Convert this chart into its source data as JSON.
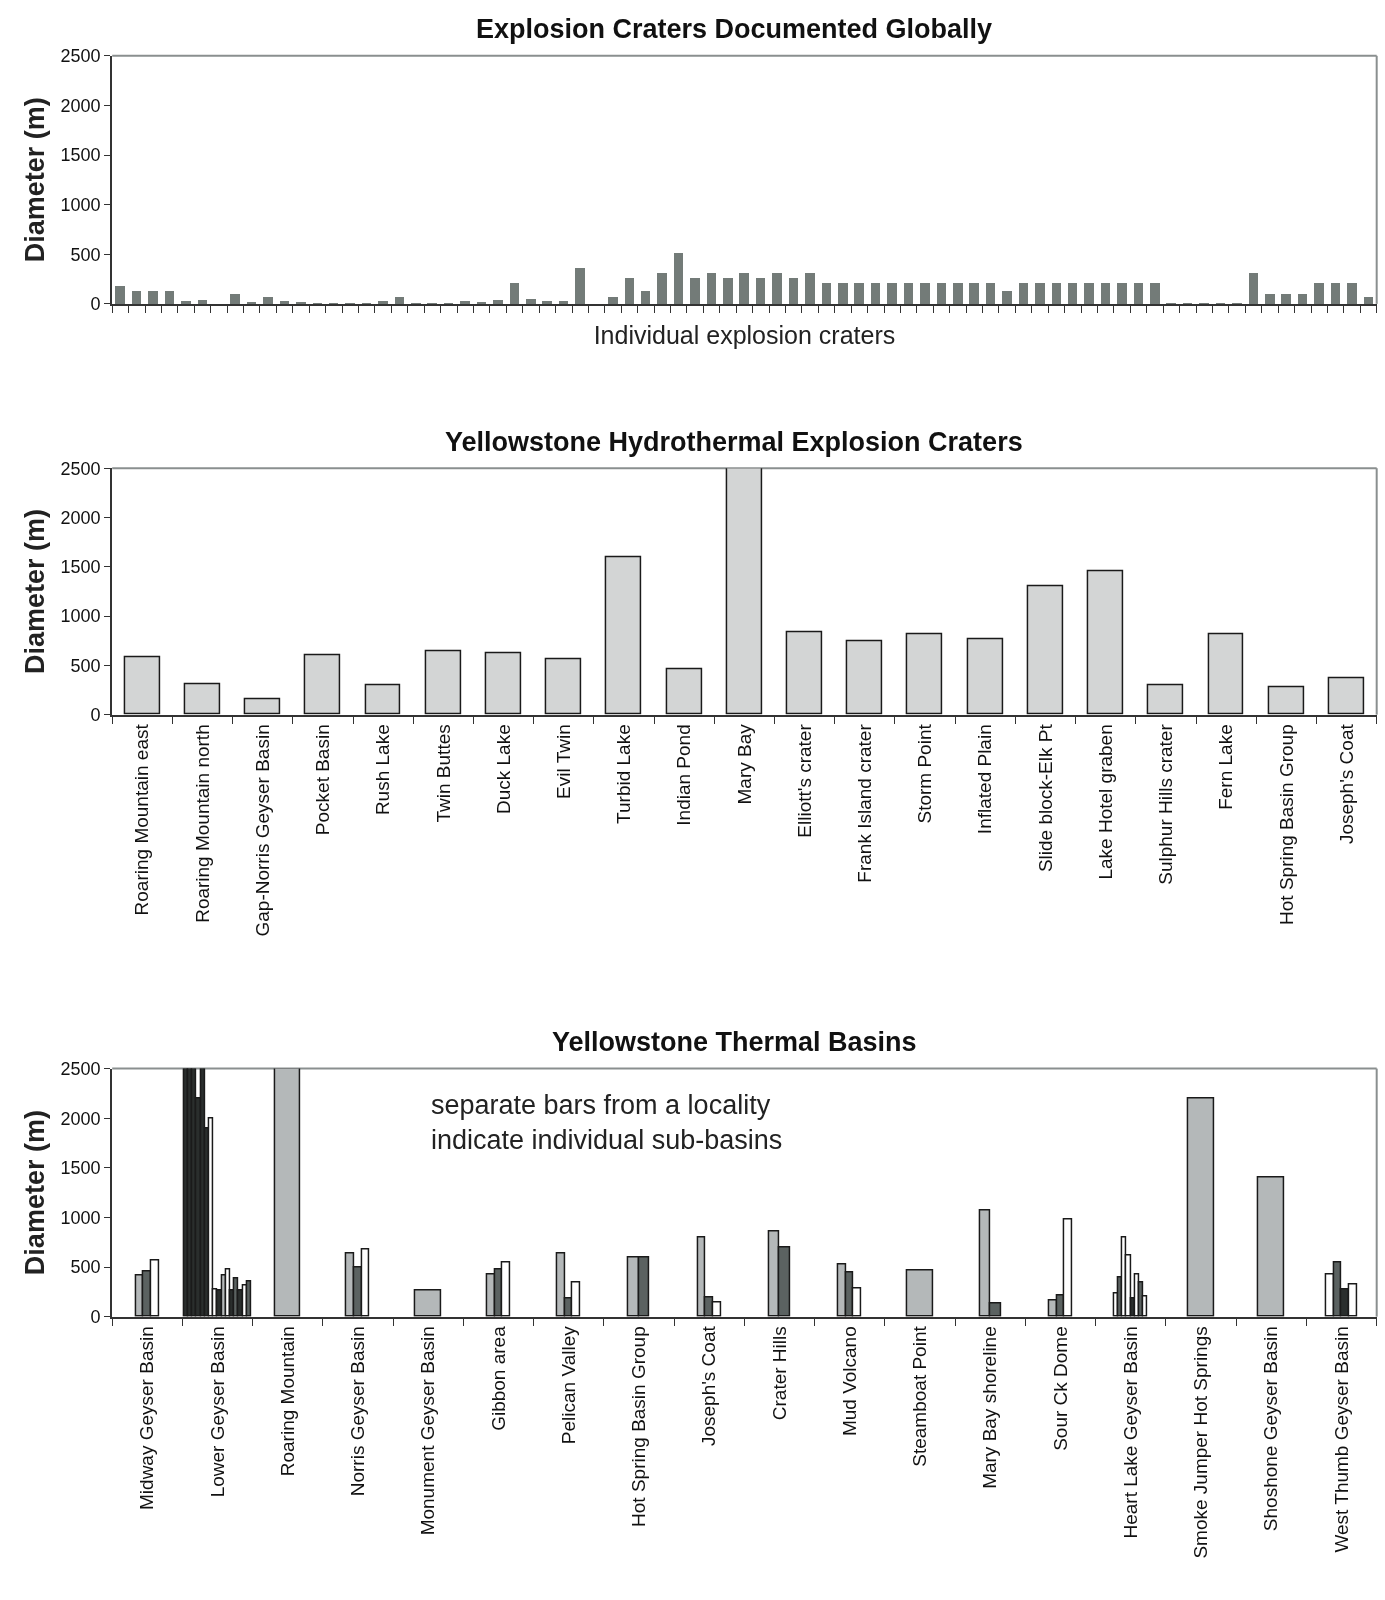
{
  "chart_data": [
    {
      "type": "bar",
      "title": "Explosion Craters Documented Globally",
      "xlabel": "Individual explosion craters",
      "ylabel": "Diameter (m)",
      "color": "#737b78",
      "categories": [
        null,
        null,
        null,
        null,
        null,
        null,
        null,
        null,
        null,
        null,
        null,
        null,
        null,
        null,
        null,
        null,
        null,
        null,
        null,
        null,
        null,
        null,
        null,
        null,
        null,
        null,
        null,
        null,
        null,
        null,
        null,
        null,
        null,
        null,
        null,
        null,
        null,
        null,
        null,
        null,
        null,
        null,
        null,
        null,
        null,
        null,
        null,
        null,
        null,
        null,
        null,
        null,
        null,
        null,
        null,
        null,
        null,
        null,
        null,
        null,
        null,
        null,
        null,
        null,
        null,
        null,
        null,
        null,
        null,
        null,
        null,
        null,
        null,
        null,
        null,
        null,
        null
      ],
      "values": [
        180,
        130,
        130,
        130,
        30,
        40,
        0,
        100,
        25,
        75,
        30,
        20,
        10,
        10,
        10,
        10,
        30,
        75,
        10,
        10,
        10,
        35,
        20,
        40,
        210,
        50,
        30,
        35,
        360,
        0,
        75,
        260,
        130,
        310,
        510,
        260,
        310,
        260,
        310,
        260,
        310,
        260,
        310,
        210,
        210,
        210,
        210,
        210,
        210,
        210,
        210,
        210,
        210,
        210,
        130,
        210,
        210,
        210,
        210,
        210,
        210,
        210,
        210,
        210,
        5,
        5,
        5,
        5,
        5,
        310,
        100,
        100,
        100,
        210,
        210,
        210,
        70
      ],
      "ylim": [
        0,
        2500
      ],
      "yticks": [
        0,
        500,
        1000,
        1500,
        2000,
        2500
      ]
    },
    {
      "type": "bar",
      "title": "Yellowstone Hydrothermal Explosion Craters",
      "ylabel": "Diameter (m)",
      "color": "#d3d5d5",
      "categories": [
        "Roaring Mountain east",
        "Roaring Mountain north",
        "Gap-Norris Geyser Basin",
        "Pocket Basin",
        "Rush Lake",
        "Twin Buttes",
        "Duck Lake",
        "Evil Twin",
        "Turbid Lake",
        "Indian Pond",
        "Mary Bay",
        "Elliott's crater",
        "Frank Island crater",
        "Storm Point",
        "Inflated Plain",
        "Slide block-Elk Pt",
        "Lake Hotel graben",
        "Sulphur Hills crater",
        "Fern Lake",
        "Hot Spring Basin Group",
        "Joseph's Coat"
      ],
      "values": [
        580,
        310,
        160,
        600,
        300,
        640,
        620,
        560,
        1600,
        460,
        2500,
        840,
        750,
        820,
        770,
        1300,
        1460,
        300,
        820,
        280,
        370
      ],
      "ylim": [
        0,
        2500
      ],
      "yticks": [
        0,
        500,
        1000,
        1500,
        2000,
        2500
      ]
    },
    {
      "type": "bar",
      "title": "Yellowstone Thermal Basins",
      "ylabel": "Diameter (m)",
      "annotations": [
        "separate bars from a locality\nindicate individual sub-basins"
      ],
      "categories": [
        "Midway Geyser Basin",
        "Lower Geyser Basin",
        "Roaring Mountain",
        "Norris Geyser Basin",
        "Monument Geyser Basin",
        "Gibbon area",
        "Pelican Valley",
        "Hot Spring Basin Group",
        "Joseph's Coat",
        "Crater Hills",
        "Mud Volcano",
        "Steamboat Point",
        "Mary Bay shoreline",
        "Sour Ck Dome",
        "Heart Lake Geyser Basin",
        "Smoke Jumper Hot Springs",
        "Shoshone Geyser Basin",
        "West Thumb Geyser Basin"
      ],
      "series": [
        {
          "values": [
            410,
            2500,
            2500,
            640,
            260,
            420,
            640,
            600,
            800,
            860,
            520,
            460,
            1070,
            160,
            230,
            2200,
            1400,
            420
          ],
          "colors": [
            "#b4b8b9",
            "#2a2e2d",
            "#b4b8b9",
            "#b4b8b9",
            "#b4b8b9",
            "#b4b8b9",
            "#b4b8b9",
            "#b4b8b9",
            "#b4b8b9",
            "#b4b8b9",
            "#b4b8b9",
            "#b4b8b9",
            "#b4b8b9",
            "#b4b8b9",
            "#ffffff",
            "#b4b8b9",
            "#b4b8b9",
            "#ffffff"
          ]
        },
        {
          "values": [
            450,
            2500,
            null,
            490,
            null,
            470,
            180,
            600,
            190,
            700,
            440,
            null,
            130,
            210,
            390,
            null,
            null,
            540
          ],
          "colors": [
            "#5b6261",
            "#2a2e2d",
            null,
            "#5b6261",
            null,
            "#5b6261",
            "#5b6261",
            "#5b6261",
            "#5b6261",
            "#5b6261",
            "#5b6261",
            null,
            "#5b6261",
            "#5b6261",
            "#5b6261",
            null,
            null,
            "#5b6261"
          ]
        },
        {
          "values": [
            560,
            2500,
            null,
            680,
            null,
            540,
            340,
            null,
            140,
            null,
            280,
            null,
            null,
            980,
            800,
            null,
            null,
            270
          ],
          "colors": [
            "#ffffff",
            "#2a2e2d",
            null,
            "#ffffff",
            null,
            "#ffffff",
            "#ffffff",
            null,
            "#ffffff",
            null,
            "#ffffff",
            null,
            null,
            "#ffffff",
            "#ffffff",
            null,
            null,
            "#2a2e2d"
          ]
        },
        {
          "values": [
            null,
            2200,
            null,
            null,
            null,
            null,
            null,
            null,
            null,
            null,
            null,
            null,
            null,
            null,
            620,
            null,
            null,
            320
          ],
          "colors": [
            null,
            "#2a2e2d",
            null,
            null,
            null,
            null,
            null,
            null,
            null,
            null,
            null,
            null,
            null,
            null,
            "#ffffff",
            null,
            null,
            "#ffffff"
          ]
        },
        {
          "values": [
            null,
            2500,
            null,
            null,
            null,
            null,
            null,
            null,
            null,
            null,
            null,
            null,
            null,
            null,
            180,
            null,
            null,
            null
          ],
          "colors": [
            null,
            "#2a2e2d",
            null,
            null,
            null,
            null,
            null,
            null,
            null,
            null,
            null,
            null,
            null,
            null,
            "#2a2e2d",
            null,
            null,
            null
          ]
        },
        {
          "values": [
            null,
            1900,
            null,
            null,
            null,
            null,
            null,
            null,
            null,
            null,
            null,
            null,
            null,
            null,
            420,
            null,
            null,
            null
          ],
          "colors": [
            null,
            "#2a2e2d",
            null,
            null,
            null,
            null,
            null,
            null,
            null,
            null,
            null,
            null,
            null,
            null,
            "#ffffff",
            null,
            null,
            null
          ]
        },
        {
          "values": [
            null,
            2000,
            null,
            null,
            null,
            null,
            null,
            null,
            null,
            null,
            null,
            null,
            null,
            null,
            340,
            null,
            null,
            null
          ],
          "colors": [
            null,
            "#ffffff",
            null,
            null,
            null,
            null,
            null,
            null,
            null,
            null,
            null,
            null,
            null,
            null,
            "#5b6261",
            null,
            null,
            null
          ]
        },
        {
          "values": [
            null,
            270,
            null,
            null,
            null,
            null,
            null,
            null,
            null,
            null,
            null,
            null,
            null,
            null,
            200,
            null,
            null,
            null
          ],
          "colors": [
            null,
            "#ffffff",
            null,
            null,
            null,
            null,
            null,
            null,
            null,
            null,
            null,
            null,
            null,
            null,
            "#ffffff",
            null,
            null,
            null
          ]
        },
        {
          "values": [
            null,
            260,
            null,
            null,
            null,
            null,
            null,
            null,
            null,
            null,
            null,
            null,
            null,
            null,
            null,
            null,
            null,
            null
          ],
          "colors": [
            null,
            "#2a2e2d",
            null,
            null,
            null,
            null,
            null,
            null,
            null,
            null,
            null,
            null,
            null,
            null,
            null,
            null,
            null,
            null
          ]
        },
        {
          "values": [
            null,
            410,
            null,
            null,
            null,
            null,
            null,
            null,
            null,
            null,
            null,
            null,
            null,
            null,
            null,
            null,
            null,
            null
          ],
          "colors": [
            null,
            "#b4b8b9",
            null,
            null,
            null,
            null,
            null,
            null,
            null,
            null,
            null,
            null,
            null,
            null,
            null,
            null,
            null,
            null
          ]
        },
        {
          "values": [
            null,
            470,
            null,
            null,
            null,
            null,
            null,
            null,
            null,
            null,
            null,
            null,
            null,
            null,
            null,
            null,
            null,
            null
          ],
          "colors": [
            null,
            "#ffffff",
            null,
            null,
            null,
            null,
            null,
            null,
            null,
            null,
            null,
            null,
            null,
            null,
            null,
            null,
            null,
            null
          ]
        },
        {
          "values": [
            null,
            260,
            null,
            null,
            null,
            null,
            null,
            null,
            null,
            null,
            null,
            null,
            null,
            null,
            null,
            null,
            null,
            null
          ],
          "colors": [
            null,
            "#2a2e2d",
            null,
            null,
            null,
            null,
            null,
            null,
            null,
            null,
            null,
            null,
            null,
            null,
            null,
            null,
            null,
            null
          ]
        },
        {
          "values": [
            null,
            380,
            null,
            null,
            null,
            null,
            null,
            null,
            null,
            null,
            null,
            null,
            null,
            null,
            null,
            null,
            null,
            null
          ],
          "colors": [
            null,
            "#5b6261",
            null,
            null,
            null,
            null,
            null,
            null,
            null,
            null,
            null,
            null,
            null,
            null,
            null,
            null,
            null,
            null
          ]
        },
        {
          "values": [
            null,
            260,
            null,
            null,
            null,
            null,
            null,
            null,
            null,
            null,
            null,
            null,
            null,
            null,
            null,
            null,
            null,
            null
          ],
          "colors": [
            null,
            "#2a2e2d",
            null,
            null,
            null,
            null,
            null,
            null,
            null,
            null,
            null,
            null,
            null,
            null,
            null,
            null,
            null,
            null
          ]
        },
        {
          "values": [
            null,
            310,
            null,
            null,
            null,
            null,
            null,
            null,
            null,
            null,
            null,
            null,
            null,
            null,
            null,
            null,
            null,
            null
          ],
          "colors": [
            null,
            "#ffffff",
            null,
            null,
            null,
            null,
            null,
            null,
            null,
            null,
            null,
            null,
            null,
            null,
            null,
            null,
            null,
            null
          ]
        },
        {
          "values": [
            null,
            350,
            null,
            null,
            null,
            null,
            null,
            null,
            null,
            null,
            null,
            null,
            null,
            null,
            null,
            null,
            null,
            null
          ],
          "colors": [
            null,
            "#5b6261",
            null,
            null,
            null,
            null,
            null,
            null,
            null,
            null,
            null,
            null,
            null,
            null,
            null,
            null,
            null,
            null
          ]
        }
      ],
      "ylim": [
        0,
        2500
      ],
      "yticks": [
        0,
        500,
        1000,
        1500,
        2000,
        2500
      ]
    }
  ]
}
